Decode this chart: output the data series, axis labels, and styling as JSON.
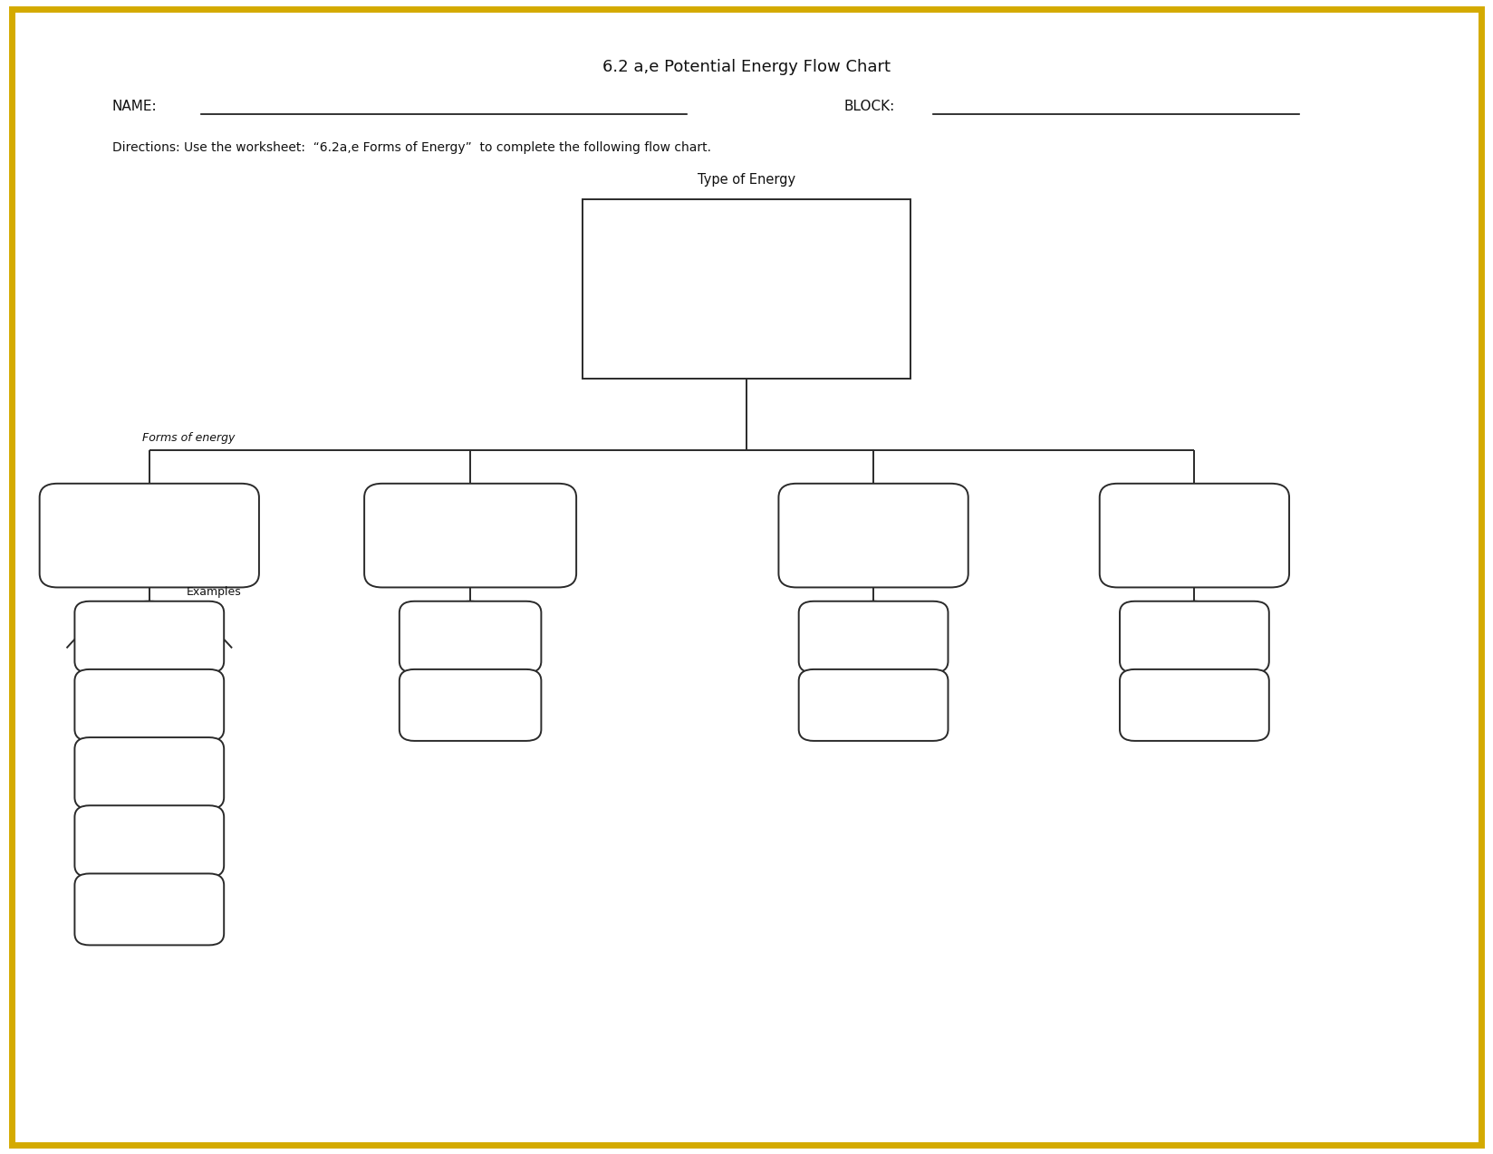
{
  "title": "6.2 a,e Potential Energy Flow Chart",
  "name_label": "NAME:",
  "block_label": "BLOCK:",
  "directions": "Directions: Use the worksheet:  “6.2a,e Forms of Energy”  to complete the following flow chart.",
  "type_of_energy_label": "Type of Energy",
  "forms_of_energy_label": "Forms of energy",
  "examples_label": "Examples",
  "background_color": "#ffffff",
  "border_color": "#d4aa00",
  "box_edge_color": "#2a2a2a",
  "line_color": "#2a2a2a",
  "text_color": "#111111",
  "figsize": [
    16.48,
    12.74
  ],
  "dpi": 100
}
